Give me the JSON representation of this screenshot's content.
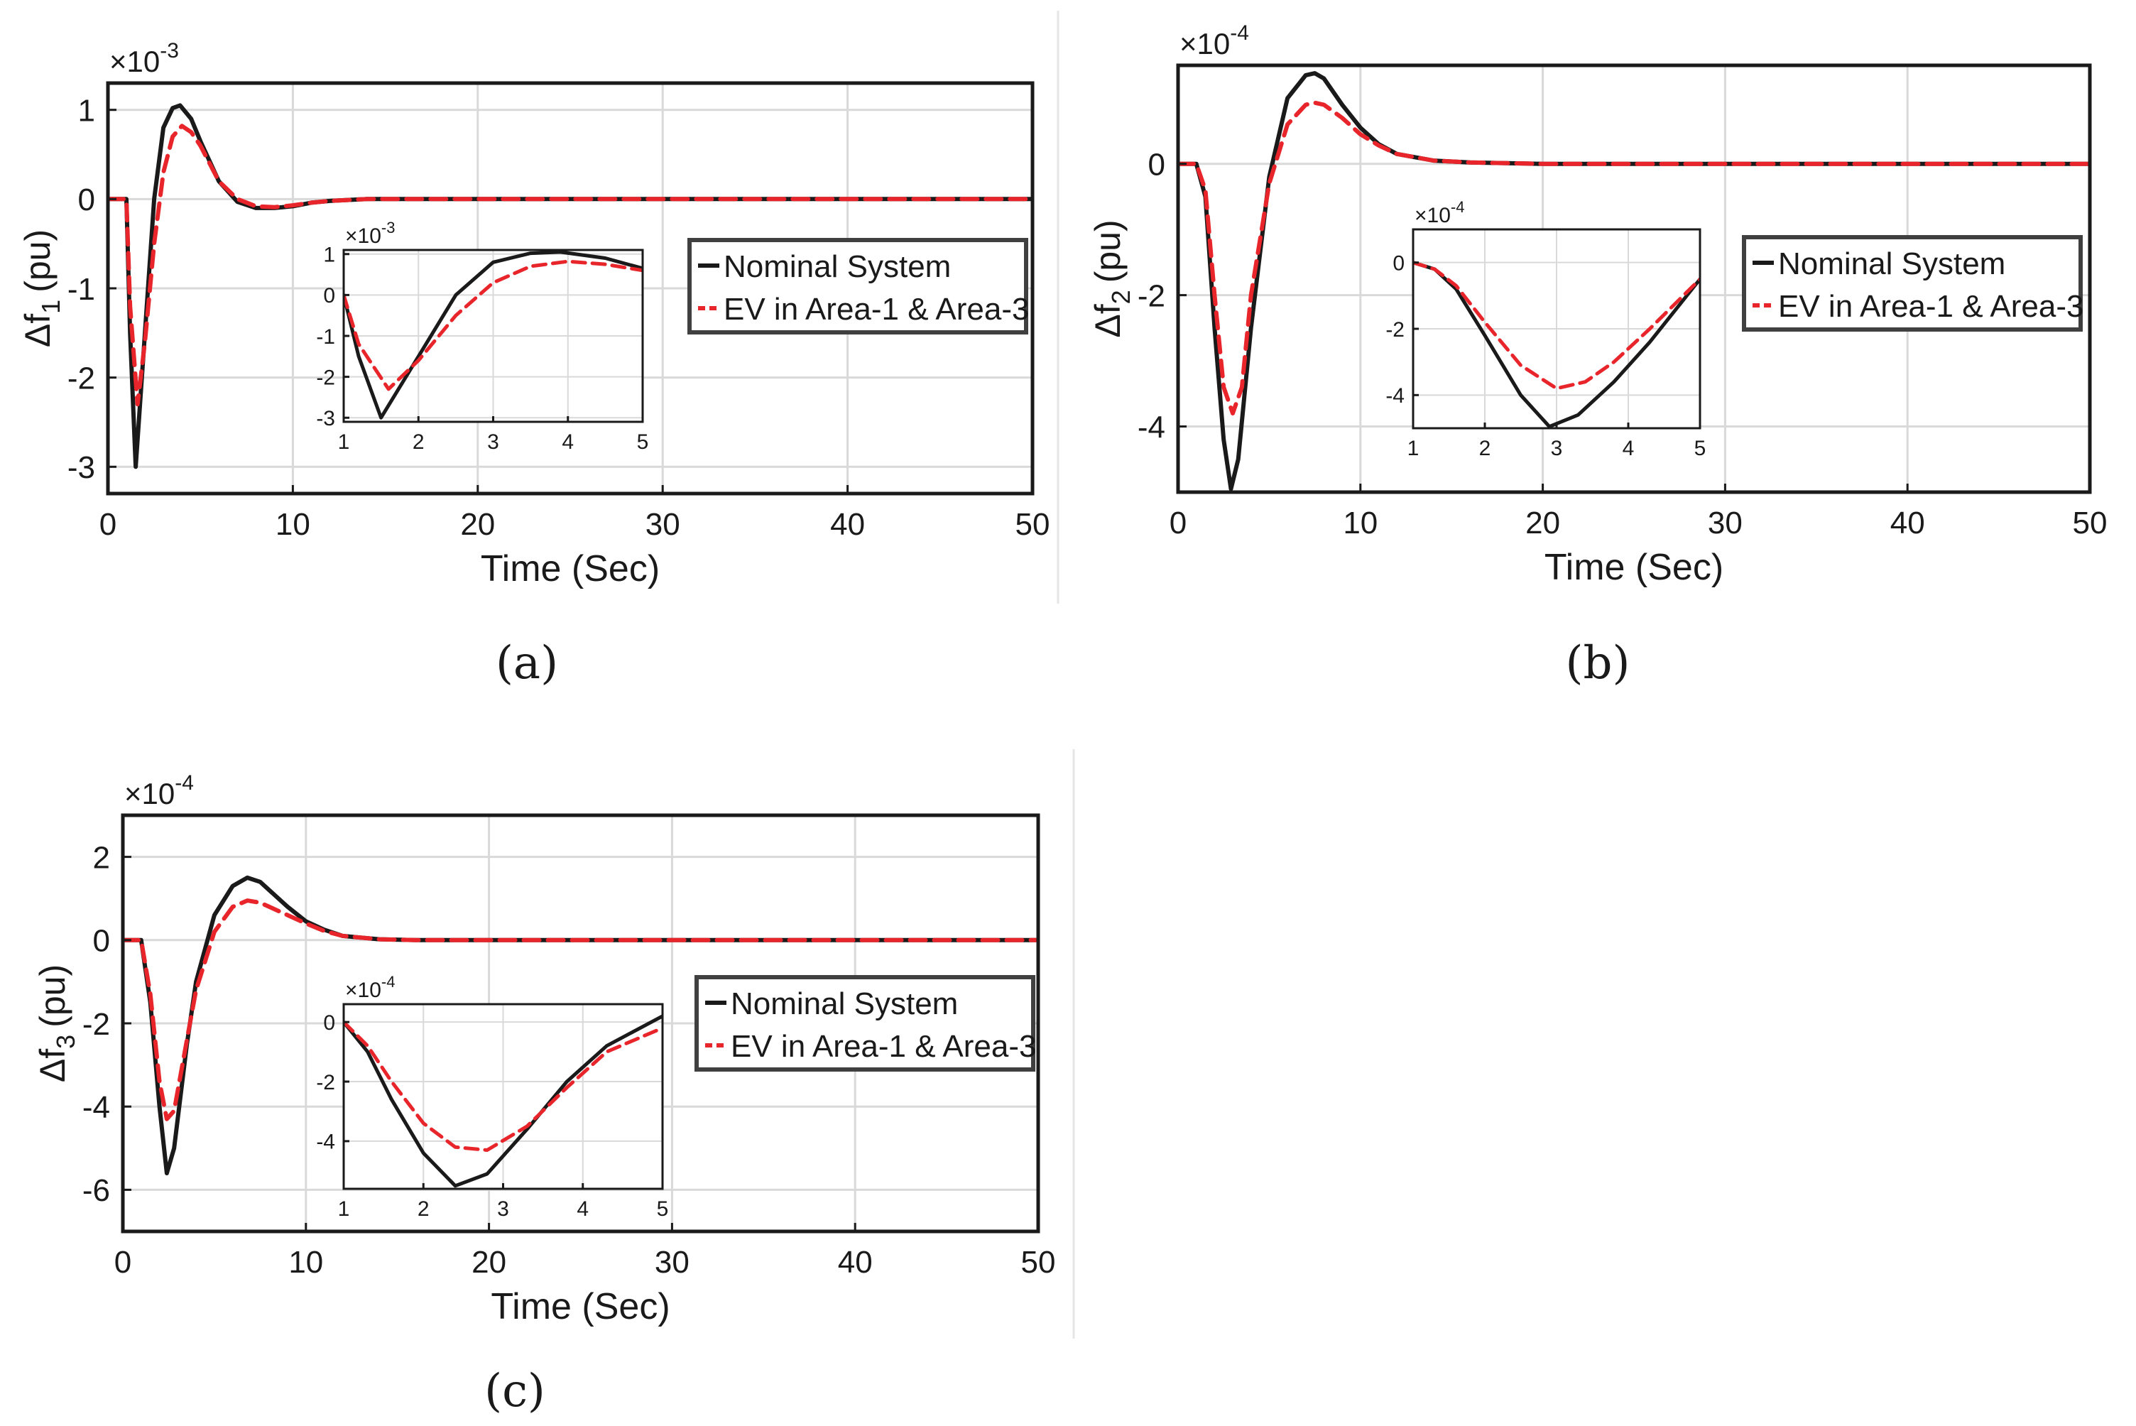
{
  "figure": {
    "legend_nominal": "Nominal System",
    "legend_ev": "EV in Area-1 & Area-3",
    "colors": {
      "nominal": "#1a1a1a",
      "ev": "#e8252b",
      "grid": "#d9d9d9",
      "frame": "#1a1a1a"
    }
  },
  "chart_data": [
    {
      "type": "line",
      "panel_label": "(a)",
      "title": "",
      "xlabel": "Time (Sec)",
      "ylabel_main": "Δf",
      "ylabel_sub": "1",
      "ylabel_unit": "(pu)",
      "exponent": "×10",
      "exponent_power": "-3",
      "xlim": [
        0,
        50
      ],
      "ylim": [
        -3.3,
        1.3
      ],
      "xticks": [
        0,
        10,
        20,
        30,
        40,
        50
      ],
      "yticks": [
        -3,
        -2,
        -1,
        0,
        1
      ],
      "xtick_labels": [
        "0",
        "10",
        "20",
        "30",
        "40",
        "50"
      ],
      "ytick_labels": [
        "-3",
        "-2",
        "-1",
        "0",
        "1"
      ],
      "legend_position": "middle-right",
      "series": [
        {
          "name": "Nominal System",
          "style": "solid",
          "x": [
            0,
            1,
            1.2,
            1.5,
            2,
            2.5,
            3,
            3.5,
            3.9,
            4.5,
            5,
            6,
            7,
            8,
            9,
            10,
            11,
            12,
            14,
            16,
            20,
            30,
            40,
            50
          ],
          "y": [
            0,
            0,
            -1.5,
            -3.0,
            -1.5,
            0.0,
            0.8,
            1.02,
            1.05,
            0.9,
            0.65,
            0.2,
            -0.03,
            -0.1,
            -0.1,
            -0.08,
            -0.04,
            -0.02,
            0,
            0,
            0,
            0,
            0,
            0
          ]
        },
        {
          "name": "EV in Area-1 & Area-3",
          "style": "dashed",
          "x": [
            0,
            1,
            1.2,
            1.6,
            2,
            2.5,
            3,
            3.5,
            4,
            4.5,
            5,
            6,
            7,
            8,
            9,
            10,
            11,
            12,
            14,
            16,
            20,
            30,
            40,
            50
          ],
          "y": [
            0,
            0,
            -1.2,
            -2.3,
            -1.6,
            -0.5,
            0.3,
            0.7,
            0.82,
            0.75,
            0.6,
            0.2,
            0.0,
            -0.08,
            -0.09,
            -0.07,
            -0.04,
            -0.02,
            0,
            0,
            0,
            0,
            0,
            0
          ]
        }
      ],
      "inset": {
        "exponent": "×10",
        "exponent_power": "-3",
        "xlim": [
          1,
          5
        ],
        "ylim": [
          -3.1,
          1.1
        ],
        "xticks": [
          1,
          2,
          3,
          4,
          5
        ],
        "yticks": [
          -3,
          -2,
          -1,
          0,
          1
        ],
        "xtick_labels": [
          "1",
          "2",
          "3",
          "4",
          "5"
        ],
        "ytick_labels": [
          "-3",
          "-2",
          "-1",
          "0",
          "1"
        ],
        "series": [
          {
            "name": "Nominal System",
            "style": "solid",
            "x": [
              1,
              1.2,
              1.5,
              2,
              2.5,
              3,
              3.5,
              3.9,
              4.5,
              5
            ],
            "y": [
              0,
              -1.5,
              -3.0,
              -1.5,
              0.0,
              0.8,
              1.02,
              1.05,
              0.9,
              0.65
            ]
          },
          {
            "name": "EV in Area-1 & Area-3",
            "style": "dashed",
            "x": [
              1,
              1.2,
              1.6,
              2,
              2.5,
              3,
              3.5,
              4,
              4.5,
              5
            ],
            "y": [
              0,
              -1.2,
              -2.3,
              -1.6,
              -0.5,
              0.3,
              0.7,
              0.82,
              0.75,
              0.6
            ]
          }
        ]
      }
    },
    {
      "type": "line",
      "panel_label": "(b)",
      "title": "",
      "xlabel": "Time (Sec)",
      "ylabel_main": "Δf",
      "ylabel_sub": "2",
      "ylabel_unit": "(pu)",
      "exponent": "×10",
      "exponent_power": "-4",
      "xlim": [
        0,
        50
      ],
      "ylim": [
        -5,
        1.5
      ],
      "xticks": [
        0,
        10,
        20,
        30,
        40,
        50
      ],
      "yticks": [
        -4,
        -2,
        0
      ],
      "xtick_labels": [
        "0",
        "10",
        "20",
        "30",
        "40",
        "50"
      ],
      "ytick_labels": [
        "-4",
        "-2",
        "0"
      ],
      "legend_position": "middle-right",
      "series": [
        {
          "name": "Nominal System",
          "style": "solid",
          "x": [
            0,
            1,
            1.5,
            2,
            2.5,
            2.9,
            3.3,
            4,
            5,
            6,
            7,
            7.5,
            8,
            9,
            10,
            11,
            12,
            14,
            16,
            20,
            30,
            40,
            50
          ],
          "y": [
            0,
            0,
            -0.5,
            -2.5,
            -4.2,
            -4.95,
            -4.5,
            -2.5,
            -0.2,
            1.0,
            1.35,
            1.38,
            1.3,
            0.9,
            0.55,
            0.3,
            0.15,
            0.05,
            0.02,
            0,
            0,
            0,
            0
          ]
        },
        {
          "name": "EV in Area-1 & Area-3",
          "style": "dashed",
          "x": [
            0,
            1,
            1.5,
            2,
            2.5,
            3,
            3.5,
            4,
            5,
            6,
            7,
            7.5,
            8,
            9,
            10,
            11,
            12,
            14,
            16,
            20,
            30,
            40,
            50
          ],
          "y": [
            0,
            0,
            -0.4,
            -2.0,
            -3.4,
            -3.8,
            -3.4,
            -2.0,
            -0.3,
            0.6,
            0.9,
            0.93,
            0.9,
            0.7,
            0.45,
            0.28,
            0.15,
            0.05,
            0.02,
            0,
            0,
            0,
            0
          ]
        }
      ],
      "inset": {
        "exponent": "×10",
        "exponent_power": "-4",
        "xlim": [
          1,
          5
        ],
        "ylim": [
          -5,
          1
        ],
        "xticks": [
          1,
          2,
          3,
          4,
          5
        ],
        "yticks": [
          -4,
          -2,
          0
        ],
        "xtick_labels": [
          "1",
          "2",
          "3",
          "4",
          "5"
        ],
        "ytick_labels": [
          "-4",
          "-2",
          "0"
        ],
        "series": [
          {
            "name": "Nominal System",
            "style": "solid",
            "x": [
              1,
              1.3,
              1.6,
              2,
              2.5,
              2.9,
              3.3,
              3.8,
              4.3,
              5
            ],
            "y": [
              0,
              -0.2,
              -0.8,
              -2.2,
              -4.0,
              -4.95,
              -4.6,
              -3.6,
              -2.4,
              -0.5
            ]
          },
          {
            "name": "EV in Area-1 & Area-3",
            "style": "dashed",
            "x": [
              1,
              1.3,
              1.6,
              2,
              2.5,
              3,
              3.4,
              3.8,
              4.3,
              5
            ],
            "y": [
              0,
              -0.2,
              -0.7,
              -1.8,
              -3.1,
              -3.8,
              -3.6,
              -3.0,
              -2.0,
              -0.5
            ]
          }
        ]
      }
    },
    {
      "type": "line",
      "panel_label": "(c)",
      "title": "",
      "xlabel": "Time (Sec)",
      "ylabel_main": "Δf",
      "ylabel_sub": "3",
      "ylabel_unit": "(pu)",
      "exponent": "×10",
      "exponent_power": "-4",
      "xlim": [
        0,
        50
      ],
      "ylim": [
        -7,
        3
      ],
      "xticks": [
        0,
        10,
        20,
        30,
        40,
        50
      ],
      "yticks": [
        -6,
        -4,
        -2,
        0,
        2
      ],
      "xtick_labels": [
        "0",
        "10",
        "20",
        "30",
        "40",
        "50"
      ],
      "ytick_labels": [
        "-6",
        "-4",
        "-2",
        "0",
        "2"
      ],
      "legend_position": "middle-right",
      "series": [
        {
          "name": "Nominal System",
          "style": "solid",
          "x": [
            0,
            1,
            1.5,
            2,
            2.4,
            2.8,
            3.5,
            4,
            5,
            6,
            6.8,
            7.5,
            8,
            9,
            10,
            11,
            12,
            14,
            16,
            20,
            30,
            40,
            50
          ],
          "y": [
            0,
            0,
            -1.5,
            -4.0,
            -5.6,
            -5.0,
            -2.5,
            -1.0,
            0.6,
            1.3,
            1.5,
            1.4,
            1.2,
            0.8,
            0.45,
            0.25,
            0.1,
            0.02,
            0,
            0,
            0,
            0,
            0
          ]
        },
        {
          "name": "EV in Area-1 & Area-3",
          "style": "dashed",
          "x": [
            0,
            1,
            1.5,
            2,
            2.4,
            2.8,
            3.5,
            4,
            5,
            6,
            6.8,
            7.5,
            8,
            9,
            10,
            11,
            12,
            14,
            16,
            20,
            30,
            40,
            50
          ],
          "y": [
            0,
            0,
            -1.3,
            -3.4,
            -4.3,
            -4.1,
            -2.4,
            -1.2,
            0.2,
            0.8,
            0.95,
            0.9,
            0.8,
            0.6,
            0.4,
            0.22,
            0.1,
            0.02,
            0,
            0,
            0,
            0,
            0
          ]
        }
      ],
      "inset": {
        "exponent": "×10",
        "exponent_power": "-4",
        "xlim": [
          1,
          5
        ],
        "ylim": [
          -5.6,
          0.6
        ],
        "xticks": [
          1,
          2,
          3,
          4,
          5
        ],
        "yticks": [
          -4,
          -2,
          0
        ],
        "xtick_labels": [
          "1",
          "2",
          "3",
          "4",
          "5"
        ],
        "ytick_labels": [
          "-4",
          "-2",
          "0"
        ],
        "series": [
          {
            "name": "Nominal System",
            "style": "solid",
            "x": [
              1,
              1.3,
              1.6,
              2,
              2.4,
              2.8,
              3.3,
              3.8,
              4.3,
              5
            ],
            "y": [
              0,
              -1.0,
              -2.6,
              -4.4,
              -5.5,
              -5.1,
              -3.6,
              -2.0,
              -0.8,
              0.2
            ]
          },
          {
            "name": "EV in Area-1 & Area-3",
            "style": "dashed",
            "x": [
              1,
              1.3,
              1.6,
              2,
              2.4,
              2.8,
              3.3,
              3.8,
              4.3,
              5
            ],
            "y": [
              0,
              -0.8,
              -2.0,
              -3.4,
              -4.2,
              -4.3,
              -3.5,
              -2.2,
              -1.0,
              -0.2
            ]
          }
        ]
      }
    }
  ]
}
